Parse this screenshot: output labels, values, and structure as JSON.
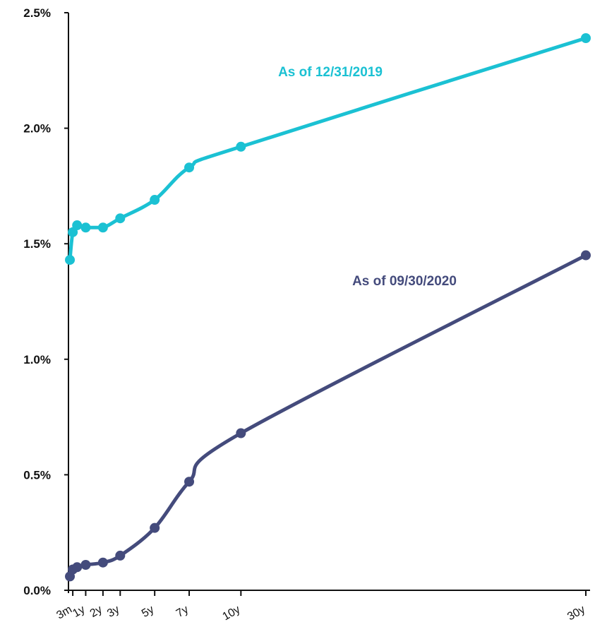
{
  "chart_data": {
    "type": "line",
    "title": "",
    "xlabel": "",
    "ylabel": "",
    "x_ticks": [
      {
        "label": "3m",
        "t": 0.25
      },
      {
        "label": "1y",
        "t": 1
      },
      {
        "label": "2y",
        "t": 2
      },
      {
        "label": "3y",
        "t": 3
      },
      {
        "label": "5y",
        "t": 5
      },
      {
        "label": "7y",
        "t": 7
      },
      {
        "label": "10y",
        "t": 10
      },
      {
        "label": "30y",
        "t": 30
      }
    ],
    "xlim": [
      0,
      30
    ],
    "y_ticks": [
      "0.0%",
      "0.5%",
      "1.0%",
      "1.5%",
      "2.0%",
      "2.5%"
    ],
    "ylim": [
      0,
      2.5
    ],
    "grid": false,
    "series": [
      {
        "name": "As of 12/31/2019",
        "color": "#1bc1d3",
        "x": [
          0.083,
          0.25,
          0.5,
          1,
          2,
          3,
          5,
          7,
          10,
          30
        ],
        "y": [
          1.43,
          1.55,
          1.58,
          1.57,
          1.57,
          1.61,
          1.69,
          1.83,
          1.92,
          2.39
        ]
      },
      {
        "name": "As of 09/30/2020",
        "color": "#444b7c",
        "x": [
          0.083,
          0.25,
          0.5,
          1,
          2,
          3,
          5,
          7,
          10,
          30
        ],
        "y": [
          0.06,
          0.09,
          0.1,
          0.11,
          0.12,
          0.15,
          0.27,
          0.47,
          0.68,
          1.45
        ]
      }
    ]
  }
}
